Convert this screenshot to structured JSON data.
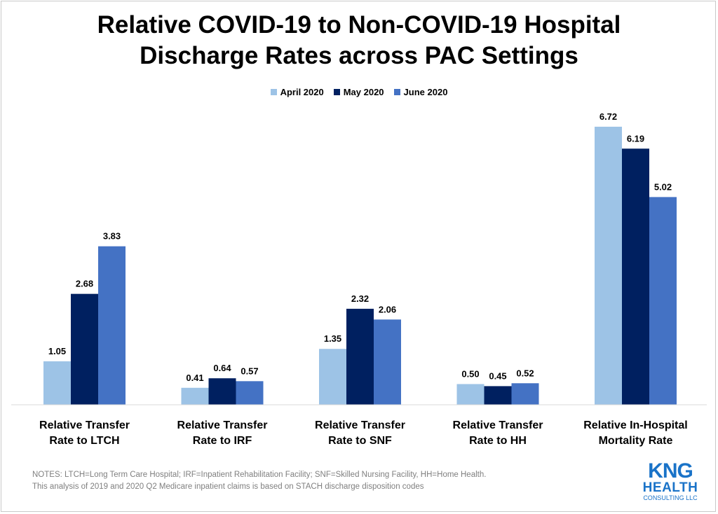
{
  "title_lines": [
    "Relative COVID-19 to Non-COVID-19 Hospital",
    "Discharge Rates across PAC Settings"
  ],
  "notes": [
    "NOTES: LTCH=Long Term Care Hospital; IRF=Inpatient Rehabilitation Facility; SNF=Skilled Nursing Facility, HH=Home Health.",
    "This analysis of 2019 and 2020 Q2 Medicare inpatient claims is based on STACH discharge disposition codes"
  ],
  "logo": {
    "text_kng": "KNG",
    "text_health": "HEALTH",
    "text_consulting": "CONSULTING LLC",
    "color": "#1a73c8"
  },
  "chart_data": {
    "type": "bar",
    "title": "Relative COVID-19 to Non-COVID-19 Hospital Discharge Rates across PAC Settings",
    "categories": [
      [
        "Relative Transfer",
        "Rate to LTCH"
      ],
      [
        "Relative Transfer",
        "Rate to IRF"
      ],
      [
        "Relative Transfer",
        "Rate to SNF"
      ],
      [
        "Relative Transfer",
        "Rate to HH"
      ],
      [
        "Relative In-Hospital",
        "Mortality Rate"
      ]
    ],
    "series": [
      {
        "name": "April 2020",
        "color": "#9dc3e6",
        "values": [
          1.05,
          0.41,
          1.35,
          0.5,
          6.72
        ]
      },
      {
        "name": "May 2020",
        "color": "#002060",
        "values": [
          2.68,
          0.64,
          2.32,
          0.45,
          6.19
        ]
      },
      {
        "name": "June 2020",
        "color": "#4472c4",
        "values": [
          3.83,
          0.57,
          2.06,
          0.52,
          5.02
        ]
      }
    ],
    "ylim": [
      0,
      7
    ],
    "grid": false,
    "legend_position": "top-center",
    "data_labels": true
  }
}
